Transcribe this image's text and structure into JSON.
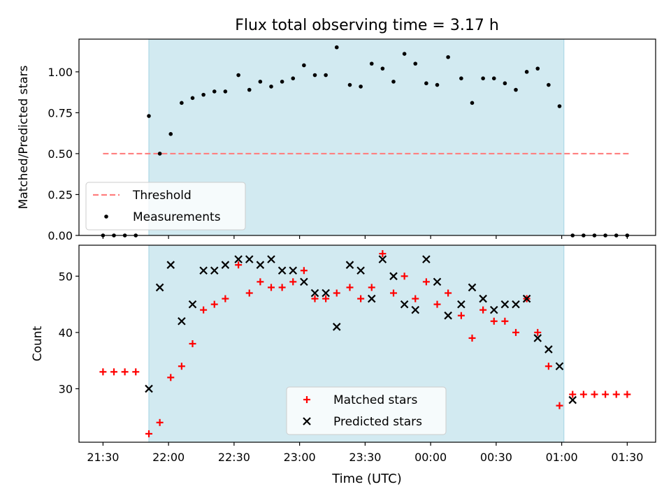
{
  "chart_data": {
    "title": "Flux total observing time = 3.17 h",
    "xlabel": "Time (UTC)",
    "xticks": [
      "21:30",
      "22:00",
      "22:30",
      "23:00",
      "23:30",
      "00:00",
      "00:30",
      "01:00",
      "01:30"
    ],
    "xtick_minutes": [
      0,
      30,
      60,
      90,
      120,
      150,
      180,
      210,
      240
    ],
    "xlim_minutes": [
      -11,
      253
    ],
    "observing_window_minutes": [
      21,
      211
    ],
    "window_color": "#d2eaf1",
    "panels": [
      {
        "type": "scatter",
        "ylabel": "Matched/Predicted stars",
        "ylim": [
          0,
          1.2
        ],
        "yticks": [
          "0.00",
          "0.25",
          "0.50",
          "0.75",
          "1.00"
        ],
        "ytick_values": [
          0,
          0.25,
          0.5,
          0.75,
          1.0
        ],
        "legend": {
          "placement": "lower-left",
          "entries": [
            "Threshold",
            "Measurements"
          ]
        },
        "threshold": {
          "name": "Threshold",
          "value": 0.5,
          "x_range": [
            0,
            241
          ],
          "color": "#ff7f7f"
        },
        "series": [
          {
            "name": "Measurements",
            "color": "#000000",
            "marker": "dot",
            "x": [
              0,
              5,
              10,
              15,
              21,
              26,
              31,
              36,
              41,
              46,
              51,
              56,
              62,
              67,
              72,
              77,
              82,
              87,
              92,
              97,
              102,
              107,
              113,
              118,
              123,
              128,
              133,
              138,
              143,
              148,
              153,
              158,
              164,
              169,
              174,
              179,
              184,
              189,
              194,
              199,
              204,
              209,
              215,
              220,
              225,
              230,
              235,
              240
            ],
            "y": [
              0,
              0,
              0,
              0,
              0.73,
              0.5,
              0.62,
              0.81,
              0.84,
              0.86,
              0.88,
              0.88,
              0.98,
              0.89,
              0.94,
              0.91,
              0.94,
              0.96,
              1.04,
              0.98,
              0.98,
              1.15,
              0.92,
              0.91,
              1.05,
              1.02,
              0.94,
              1.11,
              1.05,
              0.93,
              0.92,
              1.09,
              0.96,
              0.81,
              0.96,
              0.96,
              0.93,
              0.89,
              1.0,
              1.02,
              0.92,
              0.79,
              0,
              0,
              0,
              0,
              0,
              0
            ]
          }
        ]
      },
      {
        "type": "scatter",
        "ylabel": "Count",
        "ylim": [
          20.5,
          55.5
        ],
        "yticks": [
          "30",
          "40",
          "50"
        ],
        "ytick_values": [
          30,
          40,
          50
        ],
        "legend": {
          "placement": "lower-center",
          "entries": [
            "Matched stars",
            "Predicted stars"
          ]
        },
        "series": [
          {
            "name": "Matched stars",
            "color": "#ff0000",
            "marker": "plus",
            "x": [
              0,
              5,
              10,
              15,
              21,
              26,
              31,
              36,
              41,
              46,
              51,
              56,
              62,
              67,
              72,
              77,
              82,
              87,
              92,
              97,
              102,
              107,
              113,
              118,
              123,
              128,
              133,
              138,
              143,
              148,
              153,
              158,
              164,
              169,
              174,
              179,
              184,
              189,
              194,
              199,
              204,
              209,
              215,
              220,
              225,
              230,
              235,
              240
            ],
            "y": [
              33,
              33,
              33,
              33,
              22,
              24,
              32,
              34,
              38,
              44,
              45,
              46,
              52,
              47,
              49,
              48,
              48,
              49,
              51,
              46,
              46,
              47,
              48,
              46,
              48,
              54,
              47,
              50,
              46,
              49,
              45,
              47,
              43,
              39,
              44,
              42,
              42,
              40,
              46,
              40,
              34,
              27,
              29,
              29,
              29,
              29,
              29,
              29
            ]
          },
          {
            "name": "Predicted stars",
            "color": "#000000",
            "marker": "x",
            "x": [
              21,
              26,
              31,
              36,
              41,
              46,
              51,
              56,
              62,
              67,
              72,
              77,
              82,
              87,
              92,
              97,
              102,
              107,
              113,
              118,
              123,
              128,
              133,
              138,
              143,
              148,
              153,
              158,
              164,
              169,
              174,
              179,
              184,
              189,
              194,
              199,
              204,
              209,
              215
            ],
            "y": [
              30,
              48,
              52,
              42,
              45,
              51,
              51,
              52,
              53,
              53,
              52,
              53,
              51,
              51,
              49,
              47,
              47,
              41,
              52,
              51,
              46,
              53,
              50,
              45,
              44,
              53,
              49,
              43,
              45,
              48,
              46,
              44,
              45,
              45,
              46,
              39,
              37,
              34,
              28
            ]
          }
        ]
      }
    ]
  }
}
